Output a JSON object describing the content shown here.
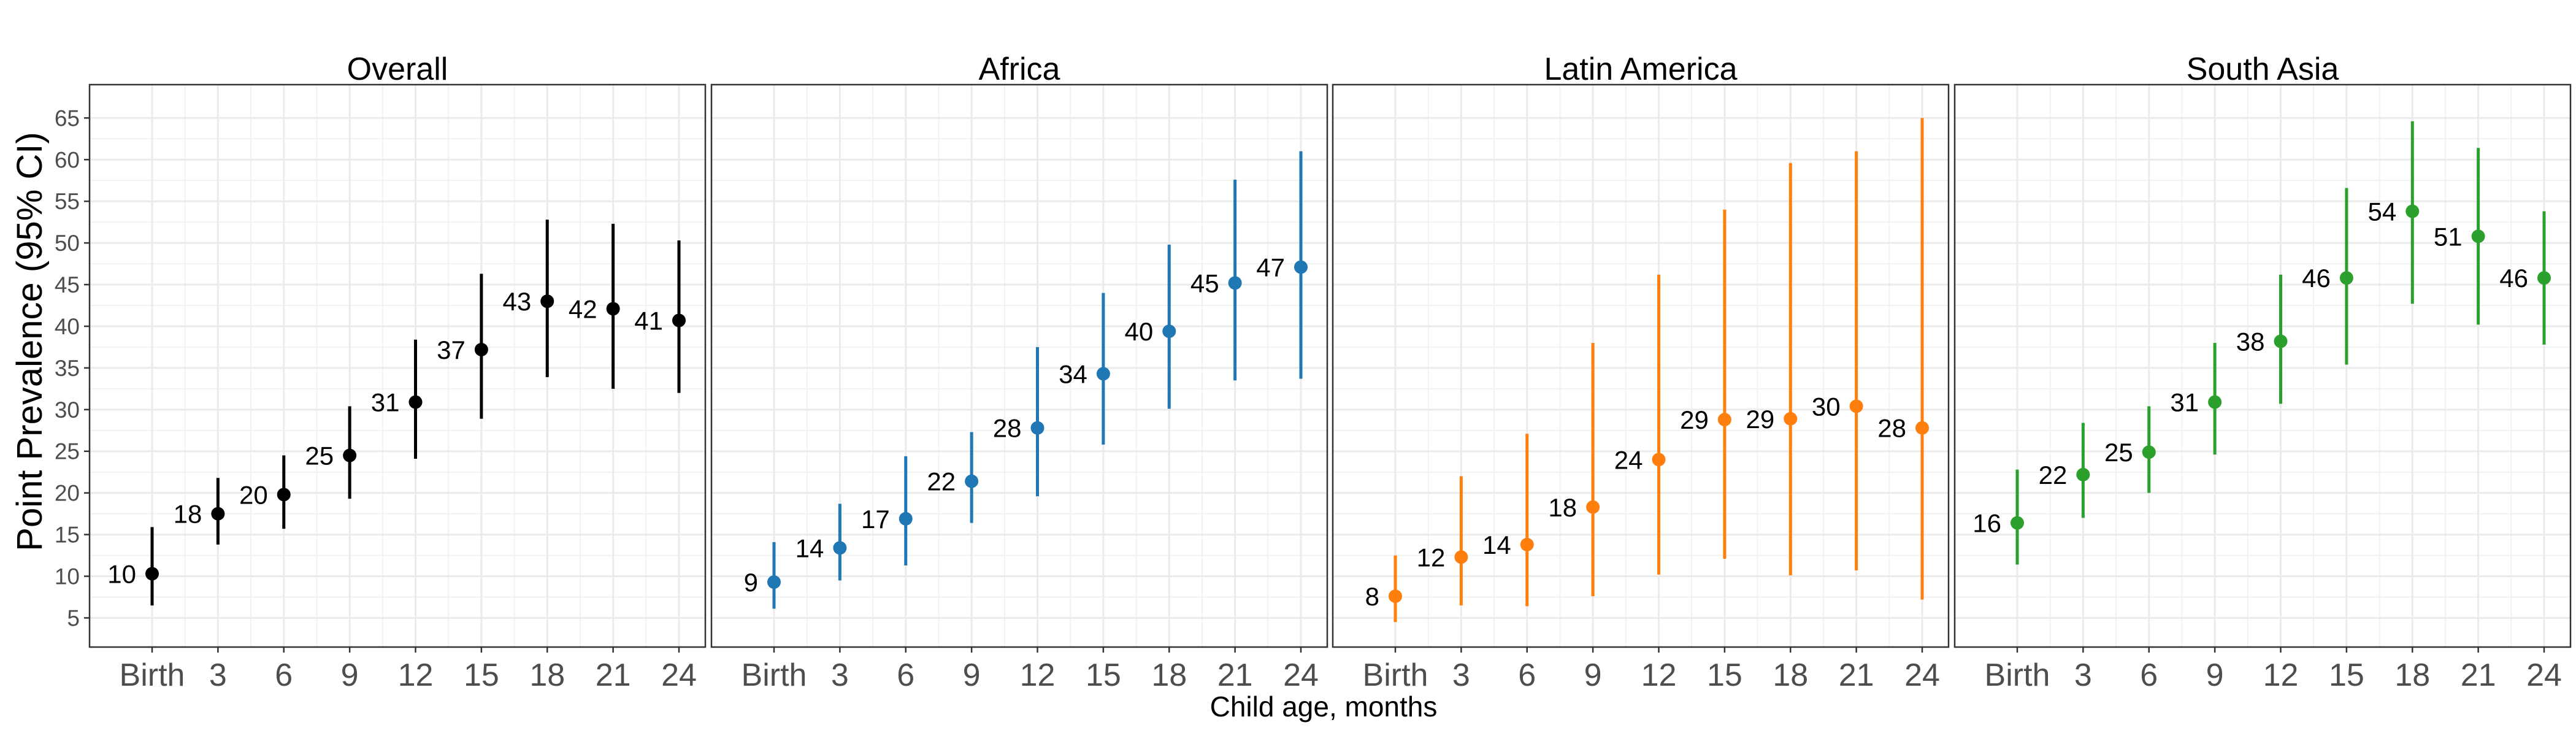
{
  "chart_data": {
    "type": "scatter",
    "subtype": "point-range faceted",
    "ylabel": "Point Prevalence (95% CI)",
    "xlabel": "Child age, months",
    "x_tick_labels": [
      "Birth",
      "3",
      "6",
      "9",
      "12",
      "15",
      "18",
      "21",
      "24"
    ],
    "x_ages": [
      0,
      3,
      6,
      9,
      12,
      15,
      18,
      21,
      24
    ],
    "y_ticks": [
      5,
      10,
      15,
      20,
      25,
      30,
      35,
      40,
      45,
      50,
      55,
      60,
      65
    ],
    "ylim": [
      1.5,
      69
    ],
    "grid": true,
    "legend": "none",
    "panels": [
      {
        "title": "Overall",
        "color": "#000000",
        "estimate": [
          10.3,
          17.5,
          19.8,
          24.5,
          30.9,
          37.2,
          43.0,
          42.1,
          40.7
        ],
        "lower": [
          6.5,
          13.8,
          15.7,
          19.3,
          24.1,
          28.9,
          33.9,
          32.5,
          32.0
        ],
        "upper": [
          15.9,
          21.8,
          24.5,
          30.4,
          38.4,
          46.3,
          52.8,
          52.3,
          50.3
        ],
        "labels": [
          "10",
          "18",
          "20",
          "25",
          "31",
          "37",
          "43",
          "42",
          "41"
        ]
      },
      {
        "title": "Africa",
        "color": "#1f77b4",
        "estimate": [
          9.3,
          13.4,
          16.9,
          21.4,
          27.8,
          34.3,
          39.4,
          45.2,
          47.1
        ],
        "lower": [
          6.1,
          9.5,
          11.3,
          16.4,
          19.6,
          25.8,
          30.1,
          33.5,
          33.7
        ],
        "upper": [
          14.1,
          18.7,
          24.4,
          27.3,
          37.5,
          44.0,
          49.8,
          57.6,
          61.0
        ],
        "labels": [
          "9",
          "14",
          "17",
          "22",
          "28",
          "34",
          "40",
          "45",
          "47"
        ]
      },
      {
        "title": "Latin America",
        "color": "#ff7f0e",
        "estimate": [
          7.6,
          12.3,
          13.8,
          18.3,
          24.0,
          28.8,
          28.9,
          30.4,
          27.8
        ],
        "lower": [
          4.5,
          6.5,
          6.4,
          7.6,
          10.2,
          12.1,
          10.1,
          10.7,
          7.2
        ],
        "upper": [
          12.5,
          22.0,
          27.1,
          38.0,
          46.2,
          54.0,
          59.6,
          61.0,
          65.0
        ],
        "labels": [
          "8",
          "12",
          "14",
          "18",
          "24",
          "29",
          "29",
          "30",
          "28"
        ]
      },
      {
        "title": "South Asia",
        "color": "#2ca02c",
        "estimate": [
          16.4,
          22.2,
          24.9,
          30.9,
          38.2,
          45.8,
          53.8,
          50.8,
          45.8
        ],
        "lower": [
          11.4,
          17.0,
          20.0,
          24.6,
          30.7,
          35.4,
          42.7,
          40.2,
          37.8
        ],
        "upper": [
          22.8,
          28.4,
          30.4,
          38.0,
          46.2,
          56.6,
          64.6,
          61.4,
          53.8
        ],
        "labels": [
          "16",
          "22",
          "25",
          "31",
          "38",
          "46",
          "54",
          "51",
          "46"
        ]
      }
    ]
  }
}
